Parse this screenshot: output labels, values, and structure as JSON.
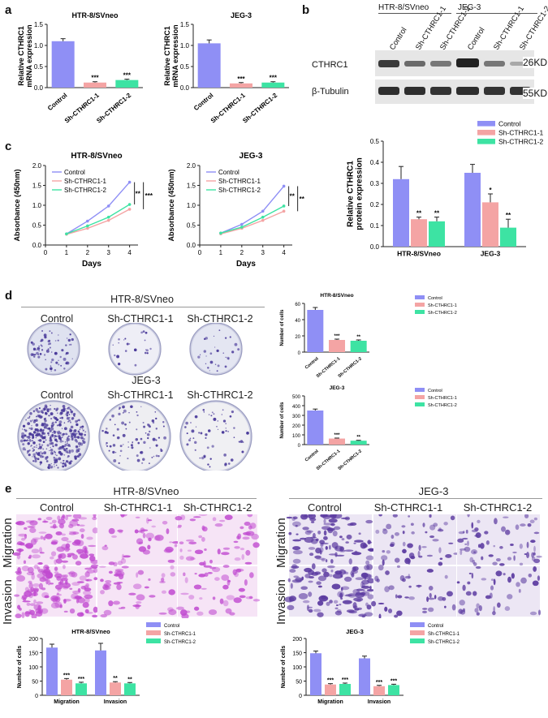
{
  "panel_labels": {
    "a": "a",
    "b": "b",
    "c": "c",
    "d": "d",
    "e": "e"
  },
  "colors": {
    "control": "#8f8ff5",
    "sh1": "#f4a4a4",
    "sh2": "#3de3a3",
    "wb_dark": "#2c2c2c",
    "crystal_violet": "#4a3a9a",
    "migration_purple": "#c04ad0",
    "jeg_purple": "#5b3aa0"
  },
  "panel_b": {
    "wb_group_labels": [
      "HTR-8/SVneo",
      "JEG-3"
    ],
    "lane_labels": [
      "Control",
      "Sh-CTHRC1-1",
      "Sh-CTHRC1-2",
      "Control",
      "Sh-CTHRC1-1",
      "Sh-CTHRC1-2"
    ],
    "row_labels": [
      "CTHRC1",
      "β-Tubulin"
    ],
    "size_labels": [
      "26KD",
      "55KD"
    ]
  },
  "panel_d": {
    "group_titles": [
      "HTR-8/SVneo",
      "JEG-3"
    ],
    "plate_labels": [
      "Control",
      "Sh-CTHRC1-1",
      "Sh-CTHRC1-2"
    ]
  },
  "panel_e": {
    "group_titles": [
      "HTR-8/SVneo",
      "JEG-3"
    ],
    "col_labels": [
      "Control",
      "Sh-CTHRC1-1",
      "Sh-CTHRC1-2"
    ],
    "row_labels": [
      "Migration",
      "Invasion"
    ]
  },
  "chart_data": [
    {
      "id": "a1",
      "type": "bar",
      "title": "HTR-8/SVneo",
      "ylabel": "Relative CTHRC1\nmRNA expression",
      "categories": [
        "Control",
        "Sh-CTHRC1-1",
        "Sh-CTHRC1-2"
      ],
      "values": [
        1.1,
        0.12,
        0.18
      ],
      "errors": [
        0.06,
        0.02,
        0.02
      ],
      "sig": [
        "",
        "***",
        "***"
      ],
      "ylim": [
        0,
        1.5
      ],
      "yticks": [
        "0.0",
        "0.5",
        "1.0",
        "1.5"
      ]
    },
    {
      "id": "a2",
      "type": "bar",
      "title": "JEG-3",
      "ylabel": "Relative CTHRC1\nmRNA expression",
      "categories": [
        "Control",
        "Sh-CTHRC1-1",
        "Sh-CTHRC1-2"
      ],
      "values": [
        1.05,
        0.1,
        0.12
      ],
      "errors": [
        0.08,
        0.02,
        0.02
      ],
      "sig": [
        "",
        "***",
        "***"
      ],
      "ylim": [
        0,
        1.5
      ],
      "yticks": [
        "0.0",
        "0.5",
        "1.0",
        "1.5"
      ]
    },
    {
      "id": "b",
      "type": "bar",
      "ylabel": "Relative CTHRC1\nprotein expression",
      "groups": [
        "HTR-8/SVneo",
        "JEG-3"
      ],
      "series": [
        {
          "name": "Control",
          "values": [
            0.32,
            0.35
          ],
          "errors": [
            0.06,
            0.04
          ],
          "sig": [
            "",
            ""
          ]
        },
        {
          "name": "Sh-CTHRC1-1",
          "values": [
            0.13,
            0.21
          ],
          "errors": [
            0.01,
            0.04
          ],
          "sig": [
            "**",
            "*"
          ]
        },
        {
          "name": "Sh-CTHRC1-2",
          "values": [
            0.12,
            0.09
          ],
          "errors": [
            0.02,
            0.04
          ],
          "sig": [
            "**",
            "**"
          ]
        }
      ],
      "ylim": [
        0,
        0.5
      ],
      "yticks": [
        "0.0",
        "0.1",
        "0.2",
        "0.3",
        "0.4",
        "0.5"
      ]
    },
    {
      "id": "c1",
      "type": "line",
      "title": "HTR-8/SVneo",
      "xlabel": "Days",
      "ylabel": "Absorbance (450nm)",
      "x": [
        1,
        2,
        3,
        4
      ],
      "series": [
        {
          "name": "Control",
          "values": [
            0.28,
            0.6,
            0.98,
            1.58
          ]
        },
        {
          "name": "Sh-CTHRC1-1",
          "values": [
            0.27,
            0.42,
            0.62,
            0.9
          ]
        },
        {
          "name": "Sh-CTHRC1-2",
          "values": [
            0.28,
            0.48,
            0.7,
            1.02
          ]
        }
      ],
      "sig": [
        "**",
        "***"
      ],
      "xlim": [
        0,
        4.4
      ],
      "ylim": [
        0,
        2.0
      ],
      "yticks": [
        "0.0",
        "0.5",
        "1.0",
        "1.5",
        "2.0"
      ],
      "xticks": [
        "0",
        "1",
        "2",
        "3",
        "4"
      ]
    },
    {
      "id": "c2",
      "type": "line",
      "title": "JEG-3",
      "xlabel": "Days",
      "ylabel": "Absorbance (450nm)",
      "x": [
        1,
        2,
        3,
        4
      ],
      "series": [
        {
          "name": "Control",
          "values": [
            0.3,
            0.52,
            0.85,
            1.48
          ]
        },
        {
          "name": "Sh-CTHRC1-1",
          "values": [
            0.28,
            0.42,
            0.62,
            0.85
          ]
        },
        {
          "name": "Sh-CTHRC1-2",
          "values": [
            0.3,
            0.45,
            0.7,
            0.98
          ]
        }
      ],
      "sig": [
        "**",
        "**"
      ],
      "xlim": [
        0,
        4.4
      ],
      "ylim": [
        0,
        2.0
      ],
      "yticks": [
        "0.0",
        "0.5",
        "1.0",
        "1.5",
        "2.0"
      ],
      "xticks": [
        "0",
        "1",
        "2",
        "3",
        "4"
      ]
    },
    {
      "id": "d1",
      "type": "bar",
      "title": "HTR-8/SVneo",
      "ylabel": "Number of cells",
      "categories": [
        "Control",
        "Sh-CTHRC1-1",
        "Sh-CTHRC1-2"
      ],
      "values": [
        52,
        15,
        14
      ],
      "errors": [
        3,
        1,
        1
      ],
      "sig": [
        "",
        "***",
        "**"
      ],
      "ylim": [
        0,
        60
      ],
      "yticks": [
        "0",
        "20",
        "40",
        "60"
      ],
      "legend": [
        "Control",
        "Sh-CTHRC1-1",
        "Sh-CTHRC1-2"
      ]
    },
    {
      "id": "d2",
      "type": "bar",
      "title": "JEG-3",
      "ylabel": "Number of cells",
      "categories": [
        "Control",
        "Sh-CTHRC1-1",
        "Sh-CTHRC1-2"
      ],
      "values": [
        350,
        62,
        40
      ],
      "errors": [
        15,
        5,
        4
      ],
      "sig": [
        "",
        "***",
        "**"
      ],
      "ylim": [
        0,
        500
      ],
      "yticks": [
        "0",
        "100",
        "200",
        "300",
        "400",
        "500"
      ],
      "legend": [
        "Control",
        "Sh-CTHRC1-1",
        "Sh-CTHRC1-2"
      ]
    },
    {
      "id": "e1",
      "type": "bar",
      "title": "HTR-8/SVneo",
      "ylabel": "Number of cells",
      "groups": [
        "Migration",
        "Invasion"
      ],
      "series": [
        {
          "name": "Control",
          "values": [
            168,
            158
          ],
          "errors": [
            12,
            25
          ],
          "sig": [
            "",
            ""
          ]
        },
        {
          "name": "Sh-CTHRC1-1",
          "values": [
            55,
            45
          ],
          "errors": [
            4,
            3
          ],
          "sig": [
            "***",
            "**"
          ]
        },
        {
          "name": "Sh-CTHRC1-2",
          "values": [
            42,
            42
          ],
          "errors": [
            4,
            3
          ],
          "sig": [
            "***",
            "**"
          ]
        }
      ],
      "ylim": [
        0,
        200
      ],
      "yticks": [
        "0",
        "50",
        "100",
        "150",
        "200"
      ]
    },
    {
      "id": "e2",
      "type": "bar",
      "title": "JEG-3",
      "ylabel": "Number of cells",
      "groups": [
        "Migration",
        "Invasion"
      ],
      "series": [
        {
          "name": "Control",
          "values": [
            148,
            130
          ],
          "errors": [
            8,
            8
          ],
          "sig": [
            "",
            ""
          ]
        },
        {
          "name": "Sh-CTHRC1-1",
          "values": [
            38,
            32
          ],
          "errors": [
            3,
            3
          ],
          "sig": [
            "***",
            "***"
          ]
        },
        {
          "name": "Sh-CTHRC1-2",
          "values": [
            40,
            36
          ],
          "errors": [
            3,
            3
          ],
          "sig": [
            "***",
            "***"
          ]
        }
      ],
      "ylim": [
        0,
        200
      ],
      "yticks": [
        "0",
        "50",
        "100",
        "150",
        "200"
      ]
    }
  ]
}
